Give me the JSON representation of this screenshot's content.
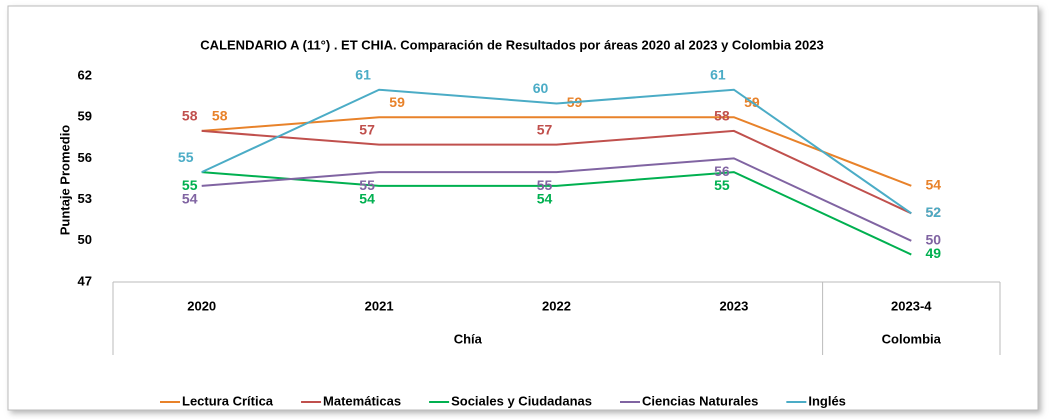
{
  "chart_data": {
    "type": "line",
    "title": "CALENDARIO  A (11°) . ET CHIA. Comparación  de Resultados  por áreas 2020  al 2023 y Colombia  2023",
    "y_label": "Puntaje Promedio",
    "categories": [
      "2020",
      "2021",
      "2022",
      "2023",
      "2023-4"
    ],
    "groups": [
      {
        "name": "Chía",
        "span": 4
      },
      {
        "name": "Colombia",
        "span": 1
      }
    ],
    "ylim": [
      47,
      62
    ],
    "yticks": [
      47,
      50,
      53,
      56,
      59,
      62
    ],
    "legend": "bottom",
    "series": [
      {
        "name": "Lectura Crítica",
        "color": "#e8822a",
        "values": [
          58,
          59,
          59,
          59,
          54
        ]
      },
      {
        "name": "Matemáticas",
        "color": "#c0504d",
        "values": [
          58,
          57,
          57,
          58,
          52
        ]
      },
      {
        "name": "Sociales y Ciudadanas",
        "color": "#00b050",
        "values": [
          55,
          54,
          54,
          55,
          49
        ]
      },
      {
        "name": "Ciencias Naturales",
        "color": "#8064a2",
        "values": [
          54,
          55,
          55,
          56,
          50
        ]
      },
      {
        "name": "Inglés",
        "color": "#4bacc6",
        "values": [
          55,
          61,
          60,
          61,
          52
        ]
      }
    ]
  }
}
